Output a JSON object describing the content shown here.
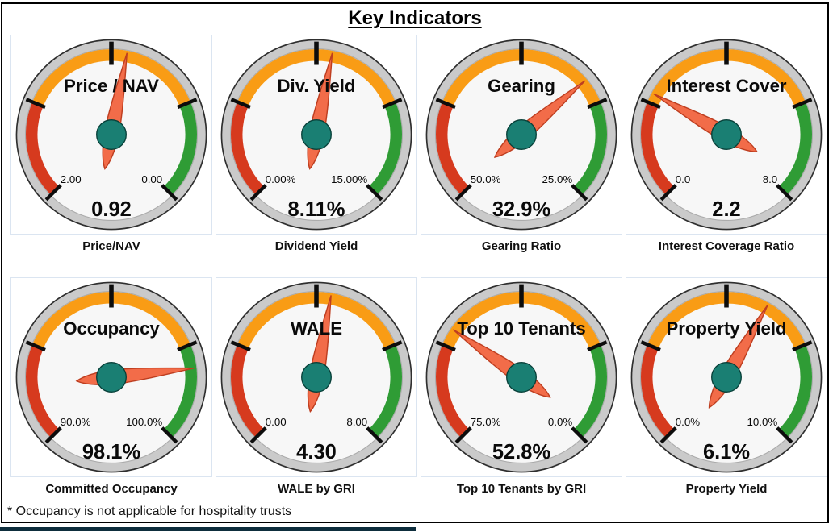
{
  "page": {
    "title": "Key Indicators",
    "footnote": "* Occupancy is not applicable for hospitality trusts"
  },
  "colors": {
    "band_red": "#D63A1E",
    "band_orange": "#F99C15",
    "band_green": "#2F9C35",
    "rim_fill": "#CACACA",
    "rim_outline": "#2F2F2F",
    "face_fill": "#F7F7F7",
    "face_outline": "#ABABAB",
    "tick": "#0D0D0D",
    "needle_fill": "#F26C49",
    "needle_outline": "#BE3E20",
    "hub_fill": "#1A7F73",
    "hub_outline": "#073F38",
    "text": "#0A0A0A",
    "card_border": "#DBE5F1",
    "bottom_bar": "#0E2E3D"
  },
  "gauge_config": {
    "start_angle_deg": -135,
    "end_angle_deg": 135,
    "band_fractions": [
      0.25,
      0.75
    ]
  },
  "chart_data": [
    {
      "type": "gauge",
      "title": "Price / NAV",
      "caption": "Price/NAV",
      "value": 0.92,
      "value_label": "0.92",
      "scale_start": 2.0,
      "scale_end": 0.0,
      "start_label": "2.00",
      "end_label": "0.00"
    },
    {
      "type": "gauge",
      "title": "Div. Yield",
      "caption": "Dividend Yield",
      "value": 8.11,
      "value_label": "8.11%",
      "scale_start": 0.0,
      "scale_end": 15.0,
      "start_label": "0.00%",
      "end_label": "15.00%"
    },
    {
      "type": "gauge",
      "title": "Gearing",
      "caption": "Gearing Ratio",
      "value": 32.9,
      "value_label": "32.9%",
      "scale_start": 50.0,
      "scale_end": 25.0,
      "start_label": "50.0%",
      "end_label": "25.0%"
    },
    {
      "type": "gauge",
      "title": "Interest Cover",
      "caption": "Interest Coverage Ratio",
      "value": 2.2,
      "value_label": "2.2",
      "scale_start": 0.0,
      "scale_end": 8.0,
      "start_label": "0.0",
      "end_label": "8.0"
    },
    {
      "type": "gauge",
      "title": "Occupancy",
      "caption": "Committed Occupancy",
      "value": 98.1,
      "value_label": "98.1%",
      "scale_start": 90.0,
      "scale_end": 100.0,
      "start_label": "90.0%",
      "end_label": "100.0%"
    },
    {
      "type": "gauge",
      "title": "WALE",
      "caption": "WALE by GRI",
      "value": 4.3,
      "value_label": "4.30",
      "scale_start": 0.0,
      "scale_end": 8.0,
      "start_label": "0.00",
      "end_label": "8.00"
    },
    {
      "type": "gauge",
      "title": "Top 10 Tenants",
      "caption": "Top 10 Tenants by GRI",
      "value": 52.8,
      "value_label": "52.8%",
      "scale_start": 75.0,
      "scale_end": 0.0,
      "start_label": "75.0%",
      "end_label": "0.0%"
    },
    {
      "type": "gauge",
      "title": "Property Yield",
      "caption": "Property Yield",
      "value": 6.1,
      "value_label": "6.1%",
      "scale_start": 0.0,
      "scale_end": 10.0,
      "start_label": "0.0%",
      "end_label": "10.0%"
    }
  ]
}
